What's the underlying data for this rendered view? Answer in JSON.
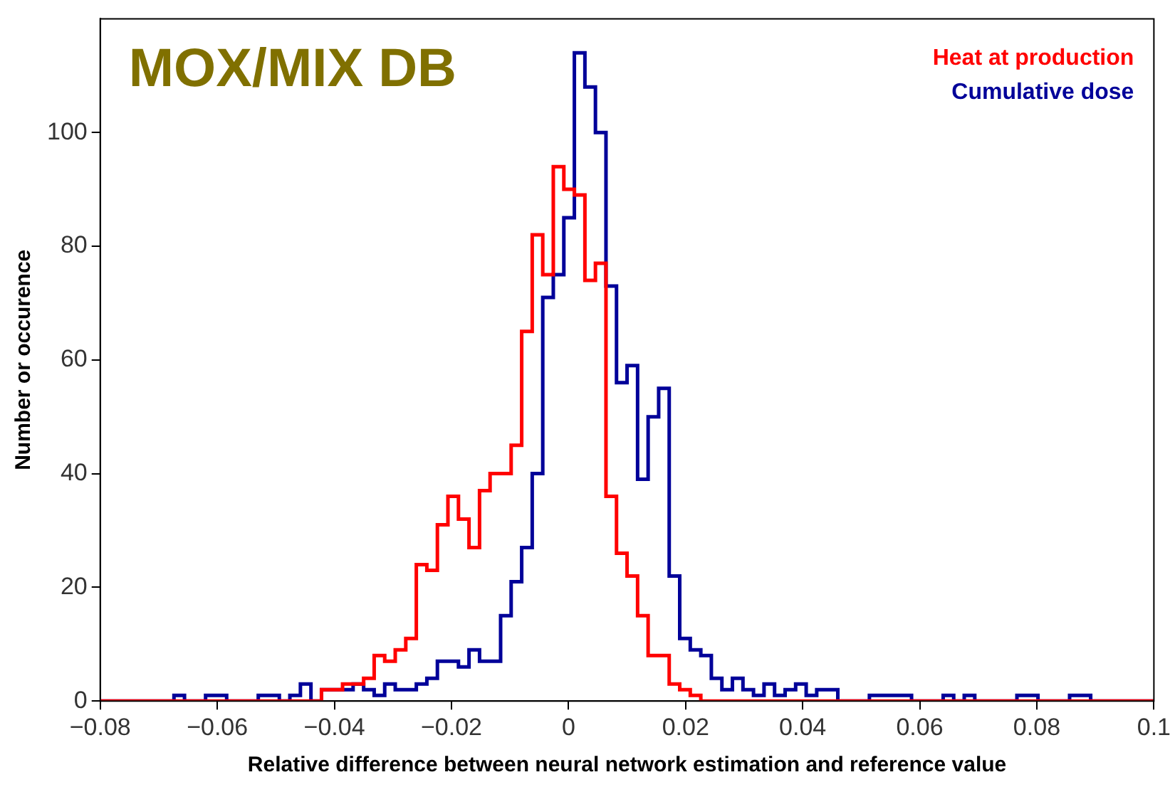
{
  "chart_data": {
    "type": "histogram",
    "title": "MOX/MIX DB",
    "xlabel": "Relative difference between neural network estimation and reference value",
    "ylabel": "Number or occurence",
    "bins": [
      -0.08,
      -0.0782,
      -0.0764,
      -0.0746,
      -0.0728,
      -0.071,
      -0.0692,
      -0.0674,
      -0.0656,
      -0.0638,
      -0.062,
      -0.0602,
      -0.0584,
      -0.0566,
      -0.0548,
      -0.053,
      -0.0512,
      -0.0494,
      -0.0476,
      -0.0458,
      -0.044,
      -0.0422,
      -0.0404,
      -0.0386,
      -0.0368,
      -0.035,
      -0.0332,
      -0.0314,
      -0.0296,
      -0.0278,
      -0.026,
      -0.0242,
      -0.0224,
      -0.0206,
      -0.0188,
      -0.017,
      -0.0152,
      -0.0134,
      -0.0116,
      -0.0098,
      -0.008,
      -0.0062,
      -0.0044,
      -0.0026,
      -0.0008,
      0.001,
      0.0028,
      0.0046,
      0.0064,
      0.0082,
      0.01,
      0.0118,
      0.0136,
      0.0154,
      0.0172,
      0.019,
      0.0208,
      0.0226,
      0.0244,
      0.0262,
      0.028,
      0.0298,
      0.0316,
      0.0334,
      0.0352,
      0.037,
      0.0388,
      0.0406,
      0.0424,
      0.0442,
      0.046,
      0.0478,
      0.0496,
      0.0514,
      0.0532,
      0.055,
      0.0568,
      0.0586,
      0.0604,
      0.0622,
      0.064,
      0.0658,
      0.0676,
      0.0694,
      0.0712,
      0.073,
      0.0748,
      0.0766,
      0.0784,
      0.0802,
      0.082,
      0.0838,
      0.0856,
      0.0874,
      0.0892,
      0.091,
      0.0928,
      0.0946,
      0.0964,
      0.0982,
      0.1
    ],
    "series": [
      {
        "name": "Heat at production",
        "color": "#ff0000",
        "values": [
          0,
          0,
          0,
          0,
          0,
          0,
          0,
          0,
          0,
          0,
          0,
          0,
          0,
          0,
          0,
          0,
          0,
          0,
          0,
          0,
          0,
          2,
          2,
          3,
          3,
          4,
          8,
          7,
          9,
          11,
          24,
          23,
          31,
          36,
          32,
          27,
          37,
          40,
          40,
          45,
          65,
          82,
          75,
          94,
          90,
          89,
          74,
          77,
          36,
          26,
          22,
          15,
          8,
          8,
          3,
          2,
          1,
          0,
          0,
          0,
          0,
          0,
          0,
          0,
          0,
          0,
          0,
          0,
          0,
          0,
          0,
          0,
          0,
          0,
          0,
          0,
          0,
          0,
          0,
          0,
          0,
          0,
          0,
          0,
          0,
          0,
          0,
          0,
          0,
          0,
          0,
          0,
          0,
          0,
          0,
          0,
          0,
          0,
          0,
          0
        ]
      },
      {
        "name": "Cumulative dose",
        "color": "#000099",
        "values": [
          0,
          0,
          0,
          0,
          0,
          0,
          0,
          1,
          0,
          0,
          1,
          1,
          0,
          0,
          0,
          1,
          1,
          0,
          1,
          3,
          0,
          2,
          2,
          2,
          3,
          2,
          1,
          3,
          2,
          2,
          3,
          4,
          7,
          7,
          6,
          9,
          7,
          7,
          15,
          21,
          27,
          40,
          71,
          75,
          85,
          114,
          108,
          100,
          73,
          56,
          59,
          39,
          50,
          55,
          22,
          11,
          9,
          8,
          4,
          2,
          4,
          2,
          1,
          3,
          1,
          2,
          3,
          1,
          2,
          2,
          0,
          0,
          0,
          1,
          1,
          1,
          1,
          0,
          0,
          0,
          1,
          0,
          1,
          0,
          0,
          0,
          0,
          1,
          1,
          0,
          0,
          0,
          1,
          1,
          0,
          0,
          0,
          0,
          0,
          0
        ]
      }
    ],
    "xlim": [
      -0.08,
      0.1
    ],
    "xticks": [
      {
        "value": -0.08,
        "label": "−0.08"
      },
      {
        "value": -0.06,
        "label": "−0.06"
      },
      {
        "value": -0.04,
        "label": "−0.04"
      },
      {
        "value": -0.02,
        "label": "−0.02"
      },
      0,
      0.02,
      0.04,
      0.06,
      0.08,
      0.1
    ],
    "ylim": [
      0,
      120
    ],
    "yticks": [
      0,
      20,
      40,
      60,
      80,
      100
    ],
    "grid": false,
    "legend": "top right"
  }
}
